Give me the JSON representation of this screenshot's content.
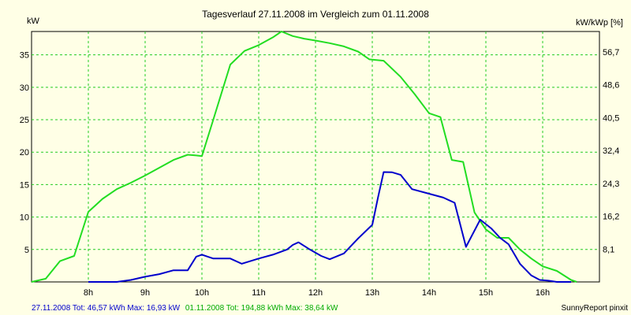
{
  "chart_data": {
    "type": "line",
    "title": "Tagesverlauf 27.11.2008 im Vergleich zum 01.11.2008",
    "ylabel_left": "kW",
    "ylabel_right": "kW/kWp [%]",
    "x_range_hours": [
      7.0,
      17.0
    ],
    "x_ticks": [
      {
        "h": 8,
        "label": "8h"
      },
      {
        "h": 9,
        "label": "9h"
      },
      {
        "h": 10,
        "label": "10h"
      },
      {
        "h": 11,
        "label": "11h"
      },
      {
        "h": 12,
        "label": "12h"
      },
      {
        "h": 13,
        "label": "13h"
      },
      {
        "h": 14,
        "label": "14h"
      },
      {
        "h": 15,
        "label": "15h"
      },
      {
        "h": 16,
        "label": "16h"
      }
    ],
    "ylim_left": [
      0,
      38.6
    ],
    "y_ticks_left": [
      {
        "v": 5,
        "label": "5"
      },
      {
        "v": 10,
        "label": "10"
      },
      {
        "v": 15,
        "label": "15"
      },
      {
        "v": 20,
        "label": "20"
      },
      {
        "v": 25,
        "label": "25"
      },
      {
        "v": 30,
        "label": "30"
      },
      {
        "v": 35,
        "label": "35"
      }
    ],
    "y_ticks_right": [
      {
        "v": 5.06,
        "label": "8,1"
      },
      {
        "v": 10.13,
        "label": "16,2"
      },
      {
        "v": 15.19,
        "label": "24,3"
      },
      {
        "v": 20.25,
        "label": "32,4"
      },
      {
        "v": 25.31,
        "label": "40,5"
      },
      {
        "v": 30.38,
        "label": "48,6"
      },
      {
        "v": 35.44,
        "label": "56,7"
      }
    ],
    "grid": true,
    "series": [
      {
        "legend": "01.11.2008 Tot: 194,88 kWh Max: 38,64 kW",
        "color": "#22dd22",
        "points": [
          [
            7.0,
            0.0
          ],
          [
            7.25,
            0.5
          ],
          [
            7.5,
            3.2
          ],
          [
            7.75,
            4.0
          ],
          [
            8.0,
            10.8
          ],
          [
            8.25,
            12.8
          ],
          [
            8.5,
            14.3
          ],
          [
            8.75,
            15.3
          ],
          [
            9.0,
            16.4
          ],
          [
            9.25,
            17.6
          ],
          [
            9.5,
            18.8
          ],
          [
            9.75,
            19.6
          ],
          [
            9.9,
            19.5
          ],
          [
            10.0,
            19.4
          ],
          [
            10.2,
            25.0
          ],
          [
            10.5,
            33.5
          ],
          [
            10.75,
            35.6
          ],
          [
            11.0,
            36.5
          ],
          [
            11.25,
            37.7
          ],
          [
            11.4,
            38.6
          ],
          [
            11.6,
            37.9
          ],
          [
            11.8,
            37.5
          ],
          [
            12.0,
            37.2
          ],
          [
            12.25,
            36.8
          ],
          [
            12.5,
            36.3
          ],
          [
            12.75,
            35.5
          ],
          [
            12.95,
            34.3
          ],
          [
            13.2,
            34.1
          ],
          [
            13.5,
            31.6
          ],
          [
            13.75,
            28.9
          ],
          [
            14.0,
            26.0
          ],
          [
            14.2,
            25.4
          ],
          [
            14.4,
            18.8
          ],
          [
            14.6,
            18.5
          ],
          [
            14.8,
            10.7
          ],
          [
            15.0,
            8.1
          ],
          [
            15.2,
            6.8
          ],
          [
            15.4,
            6.8
          ],
          [
            15.6,
            5.0
          ],
          [
            15.8,
            3.6
          ],
          [
            16.0,
            2.4
          ],
          [
            16.25,
            1.7
          ],
          [
            16.5,
            0.3
          ],
          [
            16.6,
            0.0
          ]
        ]
      },
      {
        "legend": "27.11.2008 Tot: 46,57 kWh Max: 16,93 kW",
        "color": "#0000cc",
        "points": [
          [
            8.0,
            0.0
          ],
          [
            8.5,
            0.0
          ],
          [
            8.75,
            0.3
          ],
          [
            9.0,
            0.8
          ],
          [
            9.25,
            1.2
          ],
          [
            9.5,
            1.8
          ],
          [
            9.75,
            1.8
          ],
          [
            9.9,
            3.9
          ],
          [
            10.0,
            4.2
          ],
          [
            10.2,
            3.6
          ],
          [
            10.5,
            3.6
          ],
          [
            10.7,
            2.8
          ],
          [
            11.0,
            3.6
          ],
          [
            11.25,
            4.2
          ],
          [
            11.5,
            5.0
          ],
          [
            11.6,
            5.7
          ],
          [
            11.7,
            6.1
          ],
          [
            11.9,
            5.0
          ],
          [
            12.1,
            4.0
          ],
          [
            12.25,
            3.5
          ],
          [
            12.5,
            4.4
          ],
          [
            12.75,
            6.7
          ],
          [
            13.0,
            8.8
          ],
          [
            13.1,
            13.0
          ],
          [
            13.2,
            16.93
          ],
          [
            13.35,
            16.9
          ],
          [
            13.5,
            16.5
          ],
          [
            13.7,
            14.3
          ],
          [
            14.0,
            13.6
          ],
          [
            14.25,
            13.0
          ],
          [
            14.45,
            12.2
          ],
          [
            14.65,
            5.4
          ],
          [
            14.9,
            9.6
          ],
          [
            15.1,
            8.2
          ],
          [
            15.25,
            6.8
          ],
          [
            15.4,
            5.8
          ],
          [
            15.6,
            2.8
          ],
          [
            15.8,
            1.0
          ],
          [
            15.95,
            0.3
          ],
          [
            16.1,
            0.2
          ],
          [
            16.25,
            0.0
          ],
          [
            16.5,
            0.0
          ]
        ]
      }
    ],
    "footer_left_blue": "27.11.2008 Tot: 46,57 kWh Max: 16,93 kW",
    "footer_left_green": "01.11.2008 Tot: 194,88 kWh Max: 38,64 kW",
    "footer_right": "SunnyReport pinxit"
  }
}
